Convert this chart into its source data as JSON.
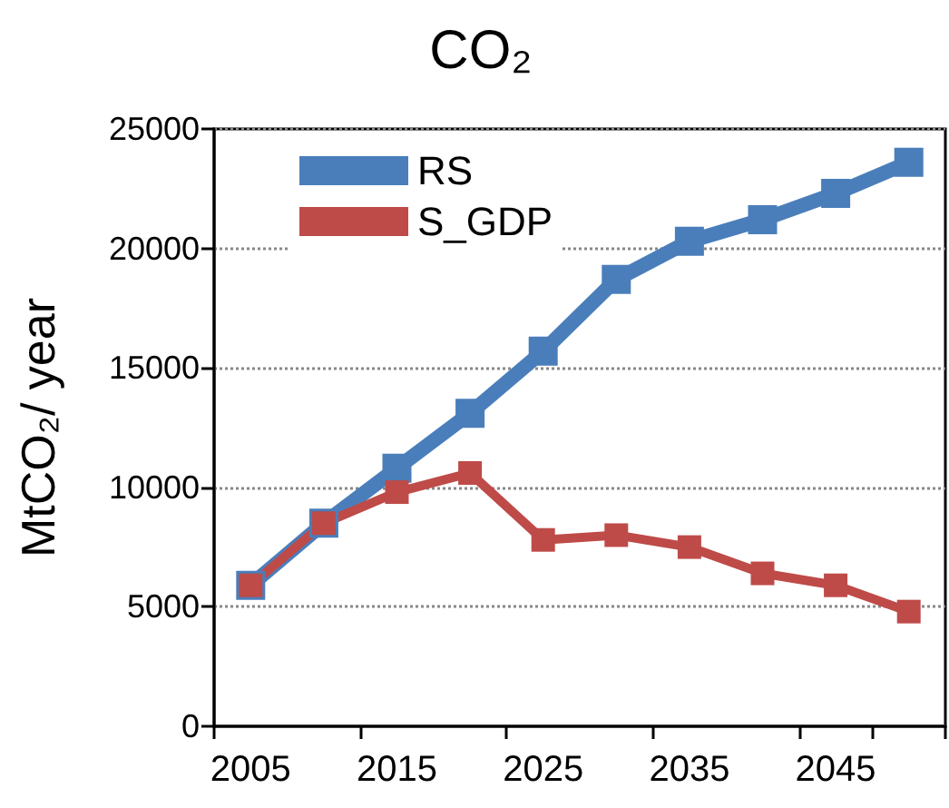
{
  "chart_data": {
    "type": "line",
    "title": "CO₂",
    "ylabel": "MtCO₂/ year",
    "categories": [
      "2005",
      null,
      "2015",
      null,
      "2025",
      null,
      "2035",
      null,
      "2045",
      null
    ],
    "series": [
      {
        "name": "RS",
        "color": "#4a7ebb",
        "values": [
          5900,
          8500,
          10800,
          13100,
          15700,
          18700,
          20300,
          21200,
          22300,
          23600
        ]
      },
      {
        "name": "S_GDP",
        "color": "#be4b48",
        "values": [
          5900,
          8500,
          9800,
          10600,
          7800,
          8000,
          7500,
          6400,
          5900,
          4800
        ]
      }
    ],
    "ylim": [
      0,
      25000
    ],
    "yticks": [
      0,
      5000,
      10000,
      15000,
      20000,
      25000
    ],
    "grid": "y",
    "legend": "top left",
    "marker": "square",
    "line_style": "solid"
  }
}
